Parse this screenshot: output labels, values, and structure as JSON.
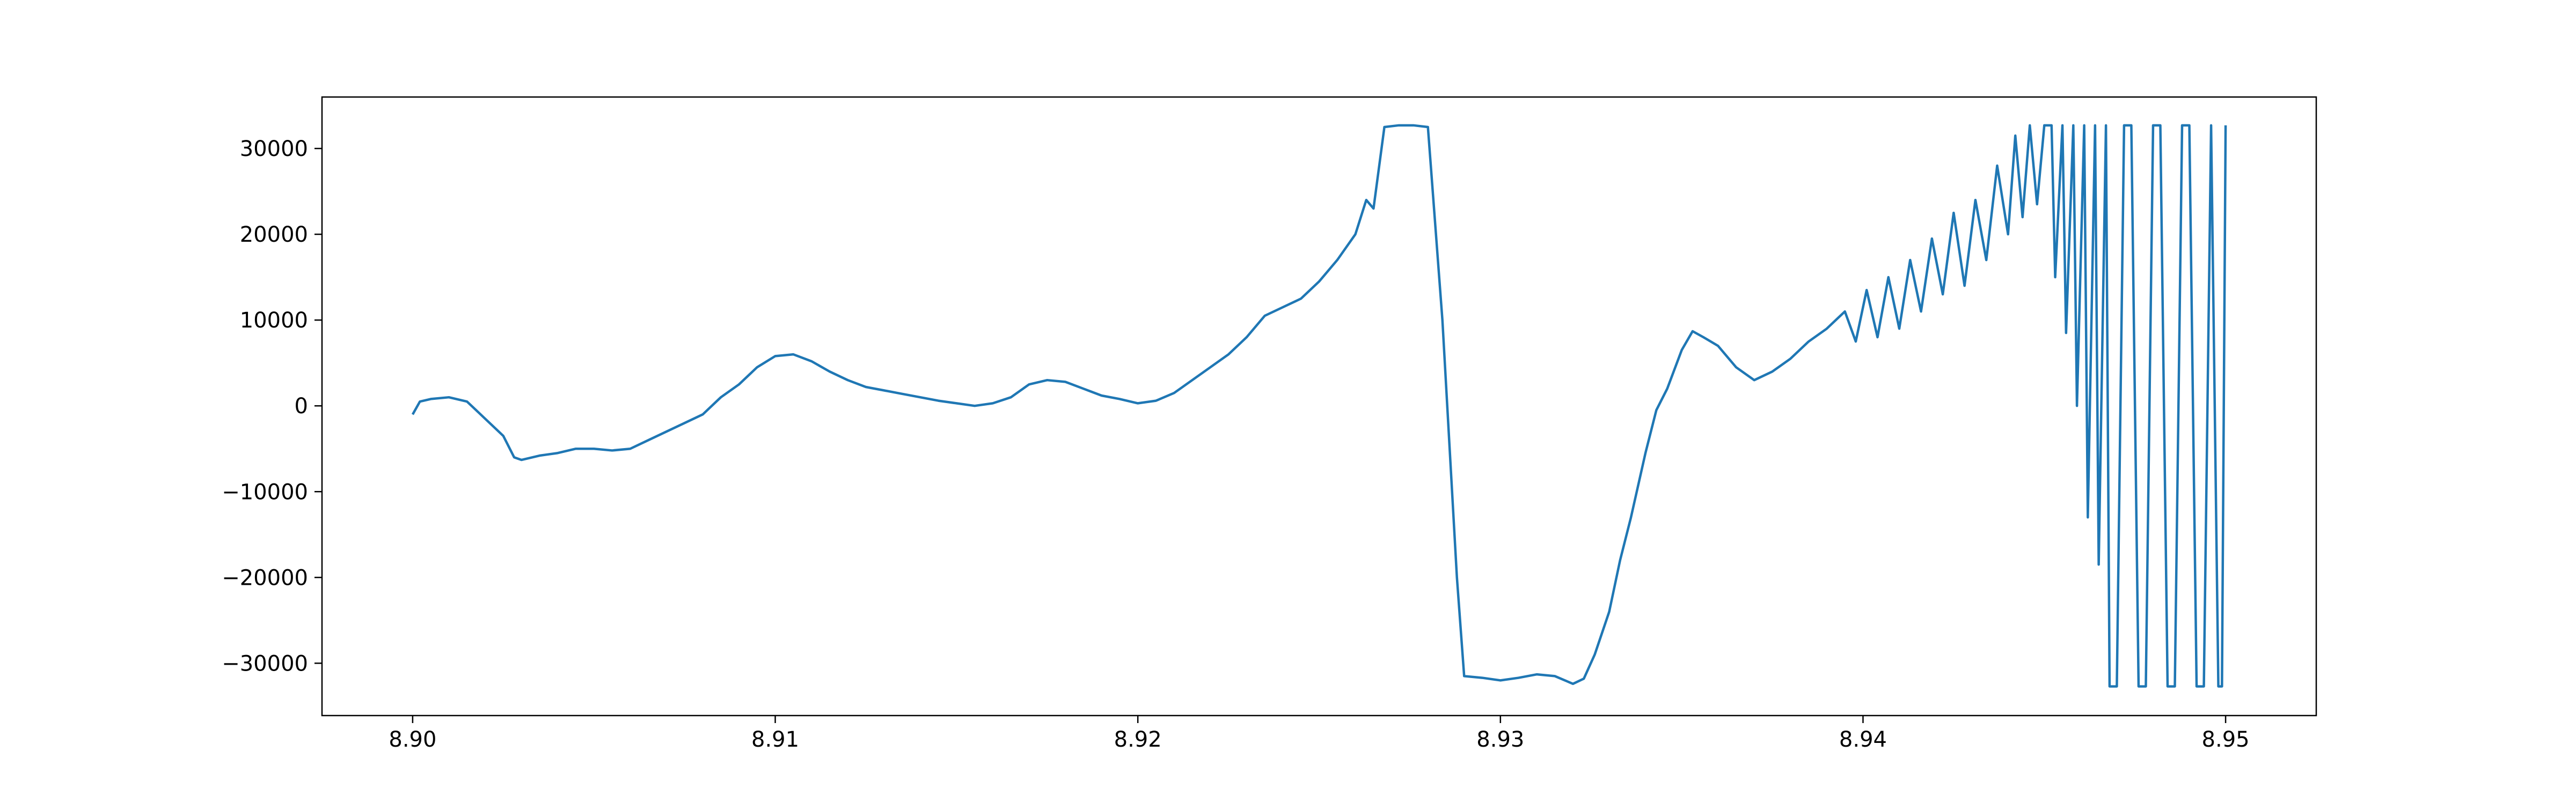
{
  "chart_data": {
    "type": "line",
    "series": [
      {
        "color": "#1f77b4",
        "x": [
          8.9,
          8.9002,
          8.9005,
          8.901,
          8.9015,
          8.902,
          8.9025,
          8.9028,
          8.903,
          8.9035,
          8.904,
          8.9045,
          8.905,
          8.9055,
          8.906,
          8.9065,
          8.907,
          8.9075,
          8.908,
          8.9085,
          8.909,
          8.9095,
          8.91,
          8.9105,
          8.911,
          8.9115,
          8.912,
          8.9125,
          8.913,
          8.9135,
          8.914,
          8.9145,
          8.915,
          8.9155,
          8.916,
          8.9165,
          8.917,
          8.9175,
          8.918,
          8.9185,
          8.919,
          8.9195,
          8.92,
          8.9205,
          8.921,
          8.9215,
          8.922,
          8.9225,
          8.923,
          8.9235,
          8.924,
          8.9245,
          8.925,
          8.9255,
          8.926,
          8.9263,
          8.9265,
          8.9268,
          8.9272,
          8.9276,
          8.928,
          8.9284,
          8.9288,
          8.929,
          8.9295,
          8.93,
          8.9305,
          8.931,
          8.9315,
          8.932,
          8.9323,
          8.9326,
          8.933,
          8.9333,
          8.9336,
          8.934,
          8.9343,
          8.9346,
          8.935,
          8.9353,
          8.9356,
          8.936,
          8.9365,
          8.937,
          8.9375,
          8.938,
          8.9385,
          8.939,
          8.9395,
          8.9398,
          8.9401,
          8.9404,
          8.9407,
          8.941,
          8.9413,
          8.9416,
          8.9419,
          8.9422,
          8.9425,
          8.9428,
          8.9431,
          8.9434,
          8.9437,
          8.944,
          8.9442,
          8.9444,
          8.9446,
          8.9448,
          8.945,
          8.9452,
          8.9453,
          8.9455,
          8.9456,
          8.9458,
          8.9459,
          8.9461,
          8.9462,
          8.9464,
          8.9465,
          8.9467,
          8.9468,
          8.947,
          8.9472,
          8.9474,
          8.9476,
          8.9478,
          8.948,
          8.9482,
          8.9484,
          8.9486,
          8.9488,
          8.949,
          8.9492,
          8.9494,
          8.9496,
          8.9498,
          8.9499,
          8.95
        ],
        "values": [
          -1000,
          500,
          800,
          1000,
          500,
          -1500,
          -3500,
          -6000,
          -6300,
          -5800,
          -5500,
          -5000,
          -5000,
          -5200,
          -5000,
          -4000,
          -3000,
          -2000,
          -1000,
          1000,
          2500,
          4500,
          5800,
          6000,
          5200,
          4000,
          3000,
          2200,
          1800,
          1400,
          1000,
          600,
          300,
          0,
          300,
          1000,
          2500,
          3000,
          2800,
          2000,
          1200,
          800,
          300,
          600,
          1500,
          3000,
          4500,
          6000,
          8000,
          10500,
          11500,
          12500,
          14500,
          17000,
          20000,
          24000,
          23000,
          32500,
          32700,
          32700,
          32500,
          10000,
          -20000,
          -31500,
          -31700,
          -32000,
          -31700,
          -31300,
          -31500,
          -32400,
          -31800,
          -29000,
          -24000,
          -18000,
          -13000,
          -5500,
          -500,
          2000,
          6500,
          8700,
          8000,
          7000,
          4500,
          3000,
          4000,
          5500,
          7500,
          9000,
          11000,
          7500,
          13500,
          8000,
          15000,
          9000,
          17000,
          11000,
          19500,
          13000,
          22500,
          14000,
          24000,
          17000,
          28000,
          20000,
          31500,
          22000,
          32700,
          23500,
          32700,
          32700,
          15000,
          32700,
          8500,
          32700,
          0,
          32700,
          -13000,
          32700,
          -18500,
          32700,
          -32700,
          -32700,
          32700,
          32700,
          -32700,
          -32700,
          32700,
          32700,
          -32700,
          -32700,
          32700,
          32700,
          -32700,
          -32700,
          32700,
          -32700,
          -32700,
          32700
        ]
      }
    ],
    "xlim": [
      8.8975,
      8.9525
    ],
    "xticks": [
      {
        "value": 8.9,
        "label": "8.90"
      },
      8.91,
      8.92,
      8.93,
      8.94,
      8.95
    ],
    "ylim": [
      -36100,
      36000
    ],
    "yticks": [
      {
        "value": -30000,
        "label": "−30000"
      },
      {
        "value": -20000,
        "label": "−20000"
      },
      {
        "value": -10000,
        "label": "−10000"
      },
      0,
      10000,
      20000,
      30000
    ]
  }
}
